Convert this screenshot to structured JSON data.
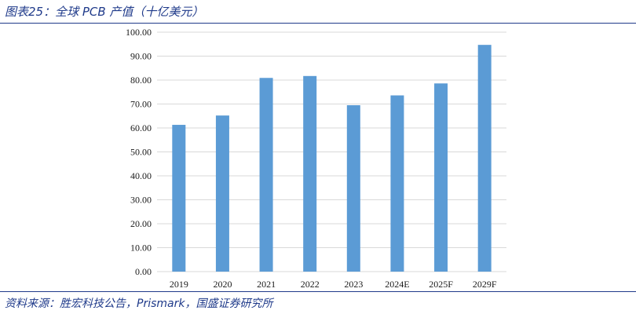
{
  "figure": {
    "title": "图表25：全球 PCB 产值（十亿美元）",
    "source": "资料来源：胜宏科技公告，Prismark，国盛证券研究所",
    "title_color": "#1f3a8a",
    "source_color": "#1f3a8a",
    "rule_color": "#1f3a8a"
  },
  "chart_data": {
    "type": "bar",
    "title": "",
    "xlabel": "",
    "ylabel": "",
    "categories": [
      "2019",
      "2020",
      "2021",
      "2022",
      "2023",
      "2024E",
      "2025F",
      "2029F"
    ],
    "values": [
      61.3,
      65.2,
      80.9,
      81.7,
      69.5,
      73.6,
      78.6,
      94.7
    ],
    "ylim": [
      0,
      100
    ],
    "yticks": [
      "0.00",
      "10.00",
      "20.00",
      "30.00",
      "40.00",
      "50.00",
      "60.00",
      "70.00",
      "80.00",
      "90.00",
      "100.00"
    ],
    "grid": true,
    "legend": "none",
    "bar_color": "#5b9bd5",
    "grid_color": "#d9d9d9"
  }
}
